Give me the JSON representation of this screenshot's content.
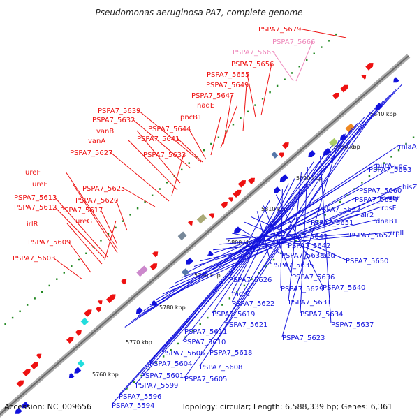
{
  "title": "Pseudomonas aeruginosa PA7, complete genome",
  "footer": {
    "accession": "Accession: NC_009656",
    "summary": "Topology: circular; Length: 6,588,339 bp; Genes: 6,361"
  },
  "colors": {
    "forward_strand": "#ee1111",
    "reverse_strand": "#1111dd",
    "pseudogene_label": "#ee88bb",
    "dots": "#228822"
  },
  "ticks": [
    "5760 kbp",
    "5770 kbp",
    "5780 kbp",
    "5790 kbp",
    "5800 kbp",
    "5810 kbp",
    "5820 kbp",
    "5830 kbp",
    "5840 kbp"
  ],
  "top_labels": [
    {
      "text": "PSPA7_5679",
      "color": "red"
    },
    {
      "text": "PSPA7_5666",
      "color": "pink"
    },
    {
      "text": "PSPA7_5665",
      "color": "pink"
    },
    {
      "text": "PSPA7_5656",
      "color": "red"
    },
    {
      "text": "PSPA7_5655",
      "color": "red"
    },
    {
      "text": "PSPA7_5649",
      "color": "red"
    },
    {
      "text": "PSPA7_5647",
      "color": "red"
    },
    {
      "text": "nadE",
      "color": "red"
    },
    {
      "text": "pncB1",
      "color": "red"
    },
    {
      "text": "PSPA7_5639",
      "color": "red"
    },
    {
      "text": "PSPA7_5632",
      "color": "red"
    },
    {
      "text": "PSPA7_5644",
      "color": "red"
    },
    {
      "text": "vanB",
      "color": "red"
    },
    {
      "text": "PSPA7_5641",
      "color": "red"
    },
    {
      "text": "vanA",
      "color": "red"
    },
    {
      "text": "PSPA7_5633",
      "color": "red"
    },
    {
      "text": "PSPA7_5627",
      "color": "red"
    },
    {
      "text": "ureF",
      "color": "red"
    },
    {
      "text": "ureE",
      "color": "red"
    },
    {
      "text": "PSPA7_5625",
      "color": "red"
    },
    {
      "text": "PSPA7_5613",
      "color": "red"
    },
    {
      "text": "PSPA7_5620",
      "color": "red"
    },
    {
      "text": "PSPA7_5612",
      "color": "red"
    },
    {
      "text": "PSPA7_5617",
      "color": "red"
    },
    {
      "text": "ureG",
      "color": "red"
    },
    {
      "text": "irlR",
      "color": "red"
    },
    {
      "text": "PSPA7_5609",
      "color": "red"
    },
    {
      "text": "PSPA7_5603",
      "color": "red"
    }
  ],
  "bottom_labels": [
    "miaA",
    "PSPA7_5663",
    "hflC",
    "purA",
    "hisZ",
    "PSPA7_5660",
    "rnr",
    "rpsR",
    "PSPA7_5654",
    "rpsF",
    "PSPA7_5653",
    "alr2",
    "dnaB1",
    "PSPA7_5651",
    "rplI",
    "PSPA7_5652",
    "PSPA7_5643",
    "PSPA7_5642",
    "PSPA7_5638",
    "azu",
    "PSPA7_5650",
    "PSPA7_5635",
    "PSPA7_5636",
    "PSPA7_5626",
    "PSPA7_5640",
    "PSPA7_5629",
    "mdlC",
    "PSPA7_5622",
    "PSPA7_5631",
    "PSPA7_5634",
    "PSPA7_5619",
    "PSPA7_5637",
    "PSPA7_5621",
    "PSPA7_5611",
    "PSPA7_5623",
    "PSPA7_5610",
    "PSPA7_5618",
    "PSPA7_5606",
    "PSPA7_5604",
    "PSPA7_5608",
    "PSPA7_5601",
    "PSPA7_5605",
    "PSPA7_5599",
    "PSPA7_5596",
    "PSPA7_5594"
  ]
}
